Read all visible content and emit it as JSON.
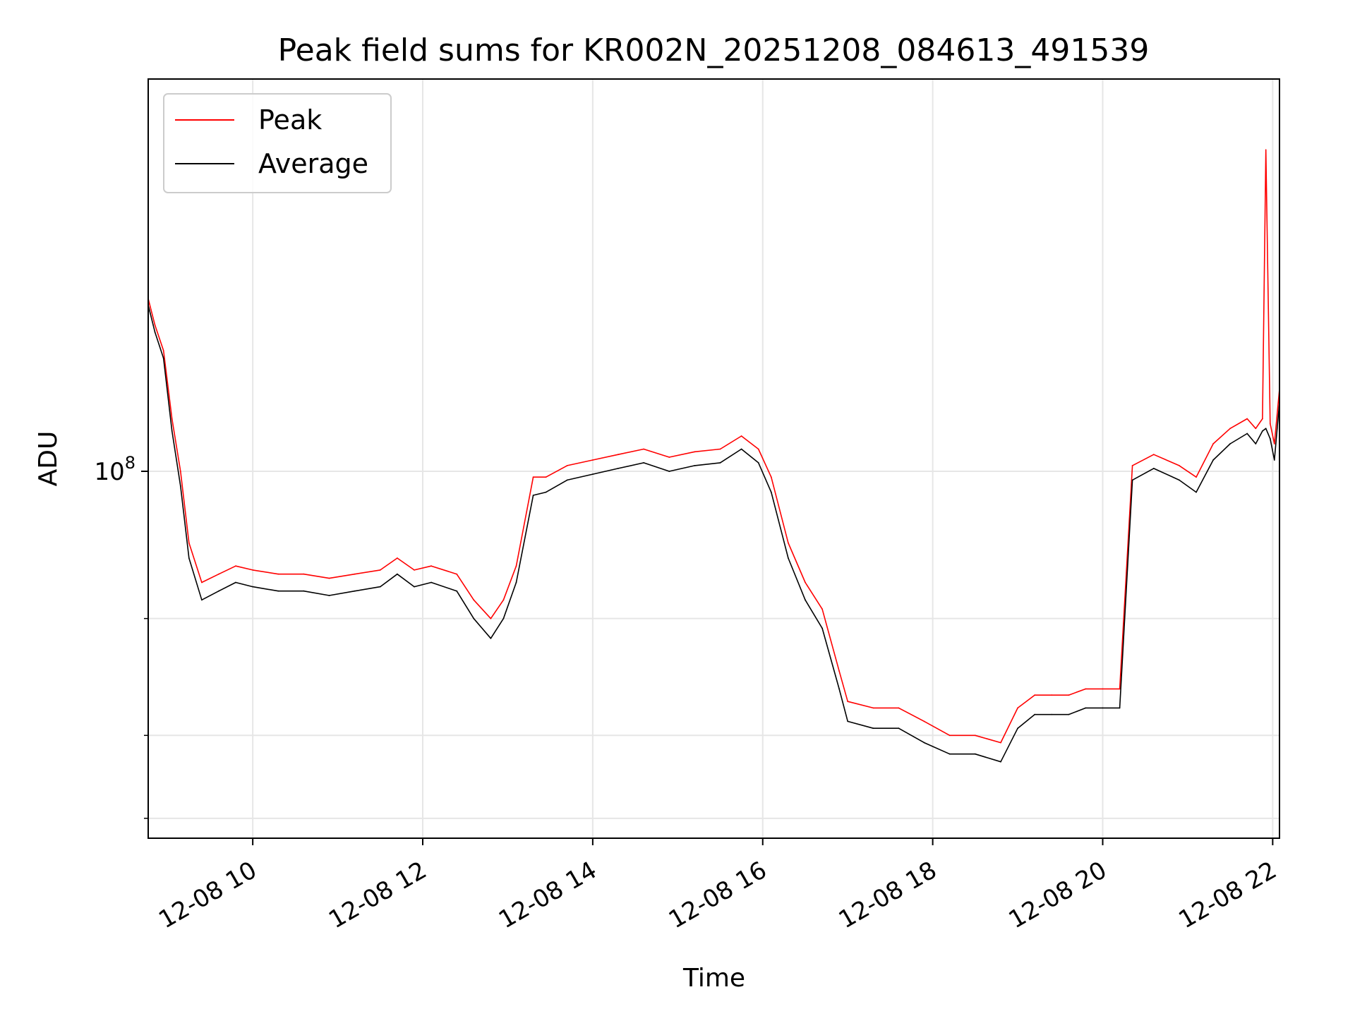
{
  "chart_data": {
    "type": "line",
    "title": "Peak field sums for KR002N_20251208_084613_491539",
    "xlabel": "Time",
    "ylabel": "ADU",
    "y_scale": "log",
    "xlim_hours": [
      8.77,
      22.08
    ],
    "ylim": [
      28000000,
      390000000
    ],
    "grid": true,
    "legend_position": "top-left",
    "x_tick_labels": [
      "12-08 10",
      "12-08 12",
      "12-08 14",
      "12-08 16",
      "12-08 18",
      "12-08 20",
      "12-08 22"
    ],
    "x_tick_hours": [
      10,
      12,
      14,
      16,
      18,
      20,
      22
    ],
    "y_major_tick": {
      "value": 100000000,
      "base": "10",
      "exponent": "8"
    },
    "y_minor_ticks": [
      30000000,
      40000000,
      60000000
    ],
    "series": [
      {
        "name": "Peak",
        "color": "#ff0000",
        "x": [
          8.77,
          8.85,
          8.95,
          9.05,
          9.15,
          9.25,
          9.4,
          9.6,
          9.8,
          10.0,
          10.3,
          10.6,
          10.9,
          11.2,
          11.5,
          11.7,
          11.9,
          12.1,
          12.4,
          12.6,
          12.8,
          12.95,
          13.1,
          13.3,
          13.45,
          13.7,
          14.0,
          14.3,
          14.6,
          14.9,
          15.2,
          15.5,
          15.75,
          15.95,
          16.1,
          16.3,
          16.5,
          16.7,
          16.9,
          17.0,
          17.3,
          17.6,
          17.9,
          18.2,
          18.5,
          18.8,
          19.0,
          19.2,
          19.4,
          19.6,
          19.8,
          20.0,
          20.2,
          20.35,
          20.6,
          20.9,
          21.1,
          21.3,
          21.5,
          21.7,
          21.8,
          21.88,
          21.92,
          21.97,
          22.02,
          22.08
        ],
        "values": [
          182000000,
          166000000,
          152000000,
          120000000,
          100000000,
          78000000,
          68000000,
          70000000,
          72000000,
          71000000,
          70000000,
          70000000,
          69000000,
          70000000,
          71000000,
          74000000,
          71000000,
          72000000,
          70000000,
          64000000,
          60000000,
          64000000,
          72000000,
          98000000,
          98000000,
          102000000,
          104000000,
          106000000,
          108000000,
          105000000,
          107000000,
          108000000,
          113000000,
          108000000,
          98000000,
          78000000,
          68000000,
          62000000,
          50000000,
          45000000,
          44000000,
          44000000,
          42000000,
          40000000,
          40000000,
          39000000,
          44000000,
          46000000,
          46000000,
          46000000,
          47000000,
          47000000,
          47000000,
          102000000,
          106000000,
          102000000,
          98000000,
          110000000,
          116000000,
          120000000,
          116000000,
          120000000,
          305000000,
          118000000,
          110000000,
          133000000
        ]
      },
      {
        "name": "Average",
        "color": "#000000",
        "x": [
          8.77,
          8.85,
          8.95,
          9.05,
          9.15,
          9.25,
          9.4,
          9.6,
          9.8,
          10.0,
          10.3,
          10.6,
          10.9,
          11.2,
          11.5,
          11.7,
          11.9,
          12.1,
          12.4,
          12.6,
          12.8,
          12.95,
          13.1,
          13.3,
          13.45,
          13.7,
          14.0,
          14.3,
          14.6,
          14.9,
          15.2,
          15.5,
          15.75,
          15.95,
          16.1,
          16.3,
          16.5,
          16.7,
          16.9,
          17.0,
          17.3,
          17.6,
          17.9,
          18.2,
          18.5,
          18.8,
          19.0,
          19.2,
          19.4,
          19.6,
          19.8,
          20.0,
          20.2,
          20.35,
          20.6,
          20.9,
          21.1,
          21.3,
          21.5,
          21.7,
          21.8,
          21.88,
          21.92,
          21.97,
          22.02,
          22.08
        ],
        "values": [
          178000000,
          162000000,
          148000000,
          115000000,
          95000000,
          74000000,
          64000000,
          66000000,
          68000000,
          67000000,
          66000000,
          66000000,
          65000000,
          66000000,
          67000000,
          70000000,
          67000000,
          68000000,
          66000000,
          60000000,
          56000000,
          60000000,
          68000000,
          92000000,
          93000000,
          97000000,
          99000000,
          101000000,
          103000000,
          100000000,
          102000000,
          103000000,
          108000000,
          103000000,
          93000000,
          74000000,
          64000000,
          58000000,
          47000000,
          42000000,
          41000000,
          41000000,
          39000000,
          37500000,
          37500000,
          36500000,
          41000000,
          43000000,
          43000000,
          43000000,
          44000000,
          44000000,
          44000000,
          97000000,
          101000000,
          97000000,
          93000000,
          104000000,
          110000000,
          114000000,
          110000000,
          115000000,
          116000000,
          112000000,
          104000000,
          127000000
        ]
      }
    ]
  }
}
